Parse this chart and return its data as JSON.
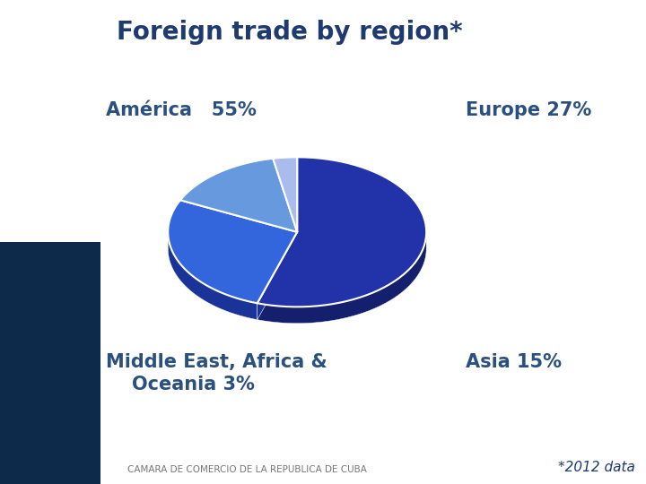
{
  "title": "Foreign trade by region*",
  "title_color": "#1e3a6e",
  "background_color": "#ffffff",
  "sidebar_color_top": "#1a4a7a",
  "sidebar_color_bot": "#0d2a4a",
  "segments": [
    {
      "label": "América",
      "pct": 55,
      "color": "#2233aa",
      "dark_color": "#141f6e"
    },
    {
      "label": "Europe",
      "pct": 27,
      "color": "#3366dd",
      "dark_color": "#1a3399"
    },
    {
      "label": "Asia",
      "pct": 15,
      "color": "#6699dd",
      "dark_color": "#3355aa"
    },
    {
      "label": "Middle East, Africa &\nOceania",
      "pct": 3,
      "color": "#aabbee",
      "dark_color": "#6677aa"
    }
  ],
  "footnote": "*2012 data",
  "footer_text": "CAMARA DE COMERCIO DE LA REPUBLICA DE CUBA",
  "label_fontsize": 15,
  "title_fontsize": 20,
  "footnote_fontsize": 11,
  "label_color": "#2a5080"
}
